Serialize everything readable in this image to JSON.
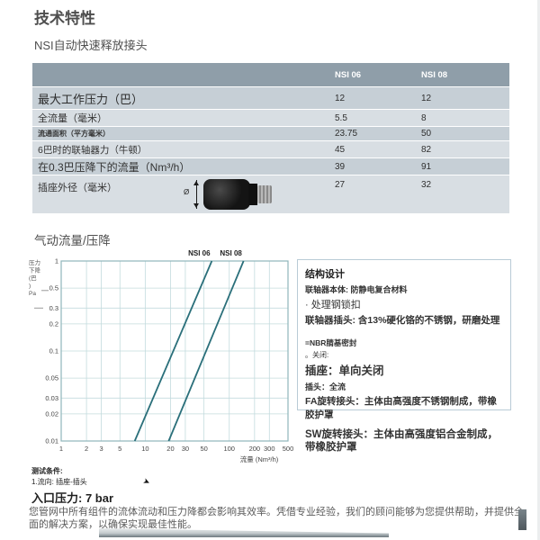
{
  "page": {
    "title": "技术特性",
    "subtitle": "NSI自动快速释放接头"
  },
  "table": {
    "columns": [
      "NSI 06",
      "NSI 08"
    ],
    "rows": [
      {
        "label": "最大工作压力（巴）",
        "nsi06": "12",
        "nsi08": "12"
      },
      {
        "label": "全流量（毫米）",
        "nsi06": "5.5",
        "nsi08": "8"
      },
      {
        "label": "流通面积（平方毫米）",
        "nsi06": "23.75",
        "nsi08": "50"
      },
      {
        "label": "6巴时的联轴器力（牛顿）",
        "nsi06": "45",
        "nsi08": "82"
      },
      {
        "label": "在0.3巴压降下的流量（Nm³/h）",
        "nsi06": "39",
        "nsi08": "91"
      },
      {
        "label": "插座外径（毫米）",
        "nsi06": "27",
        "nsi08": "32"
      }
    ],
    "image_symbol": "Ø"
  },
  "chart_section": {
    "title": "气动流量/压降"
  },
  "chart_data": {
    "type": "line",
    "title": "气动流量/压降",
    "xlabel": "流量 (Nm³/h)",
    "ylabel_lines": [
      "压力",
      "下降",
      "(巴",
      ")",
      "Pa"
    ],
    "x_scale": "log",
    "y_scale": "log",
    "xlim": [
      1,
      500
    ],
    "ylim": [
      0.01,
      1
    ],
    "x_ticks": [
      "1",
      "2",
      "3",
      "5",
      "10",
      "20",
      "30",
      "50",
      "100",
      "200",
      "300",
      "500"
    ],
    "y_ticks": [
      "1",
      "0.5",
      "0.3",
      "0.2",
      "0.1",
      "0.05",
      "0.03",
      "0.02",
      "0.01"
    ],
    "grid": true,
    "legend_position": "top",
    "line_color": "#2a6f7a",
    "grid_color": "#c3dbde",
    "frame_color": "#8fb6bb",
    "series": [
      {
        "name": "NSI 06",
        "points": [
          [
            7.5,
            0.01
          ],
          [
            62,
            1
          ]
        ]
      },
      {
        "name": "NSI 08",
        "points": [
          [
            19,
            0.01
          ],
          [
            148,
            1
          ]
        ]
      }
    ]
  },
  "info_box": {
    "title": "结构设计",
    "body": "联轴器本体: 防静电复合材料",
    "lock": "· 处理钢锁扣",
    "plug": "联轴器插头: 含13%硬化铬的不锈钢，研磨处理",
    "seal": "=NBR腈基密封",
    "close": "。关闭:",
    "socket": "插座：单向关闭",
    "plug_flow": "插头：全流",
    "fa": "FA旋转接头：主体由高强度不锈钢制成，带橡胶护罩",
    "sw": "SW旋转接头：主体由高强度铝合金制成，带橡胶护罩"
  },
  "test_conditions": {
    "title": "测试条件:",
    "flow_direction": "1.流向: 插座-插头",
    "arrow_icon": "➤",
    "inlet_pressure": "入口压力: 7 bar"
  },
  "footer": {
    "paragraph": "您管网中所有组件的流体流动和压力降都会影响其效率。凭借专业经验，我们的顾问能够为您提供帮助，并提供全面的解决方案，以确保实现最佳性能。"
  },
  "colors": {
    "table_header": "#8f9ea9",
    "row_dark": "#c6cfd6",
    "row_light": "#d8dee3",
    "chart_line": "#2a6f7a"
  }
}
